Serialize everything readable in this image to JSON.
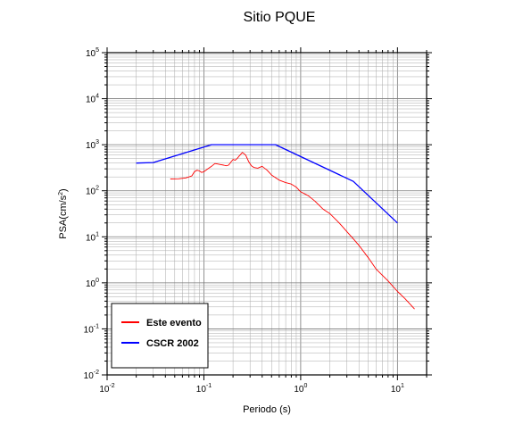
{
  "chart_data": {
    "type": "line",
    "title": "Sitio PQUE",
    "xlabel": "Periodo (s)",
    "ylabel": {
      "pre": "PSA(cm/s",
      "sup": "2",
      "post": ")"
    },
    "x_scale": "log",
    "y_scale": "log",
    "xlim": [
      0.01,
      20
    ],
    "ylim": [
      0.01,
      100000
    ],
    "grid": true,
    "legend_position": "bottom-left",
    "x_ticks": [
      {
        "base": "10",
        "exp": "-2"
      },
      {
        "base": "10",
        "exp": "-1"
      },
      {
        "base": "10",
        "exp": "0"
      },
      {
        "base": "10",
        "exp": "1"
      }
    ],
    "y_ticks": [
      {
        "base": "10",
        "exp": "-2"
      },
      {
        "base": "10",
        "exp": "-1"
      },
      {
        "base": "10",
        "exp": "0"
      },
      {
        "base": "10",
        "exp": "1"
      },
      {
        "base": "10",
        "exp": "2"
      },
      {
        "base": "10",
        "exp": "3"
      },
      {
        "base": "10",
        "exp": "4"
      },
      {
        "base": "10",
        "exp": "5"
      }
    ],
    "series": [
      {
        "name": "Este evento",
        "color": "#ff0000",
        "x": [
          0.045,
          0.055,
          0.065,
          0.07,
          0.075,
          0.08,
          0.085,
          0.09,
          0.095,
          0.1,
          0.105,
          0.11,
          0.12,
          0.13,
          0.14,
          0.15,
          0.16,
          0.17,
          0.18,
          0.19,
          0.2,
          0.21,
          0.22,
          0.23,
          0.25,
          0.27,
          0.29,
          0.31,
          0.33,
          0.36,
          0.4,
          0.45,
          0.5,
          0.6,
          0.7,
          0.8,
          0.9,
          1.0,
          1.2,
          1.4,
          1.7,
          2.0,
          2.5,
          3.0,
          3.5,
          4.0,
          5.0,
          6.0,
          8.0,
          10.0,
          12.0,
          15.0
        ],
        "y": [
          180,
          182,
          190,
          200,
          210,
          260,
          280,
          270,
          250,
          260,
          280,
          300,
          340,
          390,
          380,
          370,
          360,
          350,
          360,
          420,
          480,
          460,
          500,
          560,
          680,
          600,
          430,
          350,
          320,
          310,
          340,
          280,
          220,
          170,
          150,
          140,
          120,
          95,
          78,
          60,
          40,
          32,
          20,
          13,
          9.0,
          6.5,
          3.5,
          2.0,
          1.1,
          0.65,
          0.45,
          0.27
        ]
      },
      {
        "name": "CSCR 2002",
        "color": "#0000ff",
        "x": [
          0.02,
          0.03,
          0.12,
          0.55,
          3.5,
          10.0
        ],
        "y": [
          400,
          410,
          1000,
          1000,
          160,
          20
        ]
      }
    ]
  }
}
